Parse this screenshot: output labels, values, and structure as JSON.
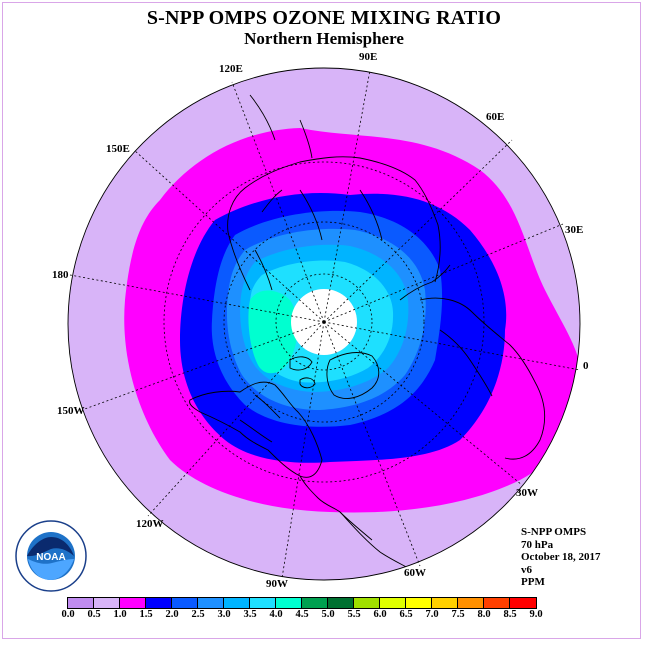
{
  "title": "S-NPP OMPS OZONE MIXING RATIO",
  "subtitle": "Northern Hemisphere",
  "lon_labels": {
    "e90": "90E",
    "e60": "60E",
    "e30": "30E",
    "zero": "0",
    "w30": "30W",
    "w60": "60W",
    "w90": "90W",
    "w120": "120W",
    "w150": "150W",
    "lon180": "180",
    "e150": "150E",
    "e120": "120E"
  },
  "info": {
    "instrument": "S-NPP OMPS",
    "level": "70 hPa",
    "date": "October 18, 2017",
    "version": "v6",
    "units": "PPM"
  },
  "legend": {
    "ticks": [
      "0.0",
      "0.5",
      "1.0",
      "1.5",
      "2.0",
      "2.5",
      "3.0",
      "3.5",
      "4.0",
      "4.5",
      "5.0",
      "5.5",
      "6.0",
      "6.5",
      "7.0",
      "7.5",
      "8.0",
      "8.5",
      "9.0"
    ],
    "colors": [
      "#c08cf0",
      "#d8b4f8",
      "#ff00ff",
      "#0000ff",
      "#0a5aff",
      "#1e90ff",
      "#00b4ff",
      "#1ee0ff",
      "#00ffd0",
      "#00a050",
      "#007030",
      "#a0e000",
      "#e0ff00",
      "#ffff00",
      "#ffd000",
      "#ff9000",
      "#ff4000",
      "#ff0000",
      "#8b5a3c"
    ]
  },
  "logo": {
    "name": "noaa-logo",
    "text": "NOAA"
  }
}
